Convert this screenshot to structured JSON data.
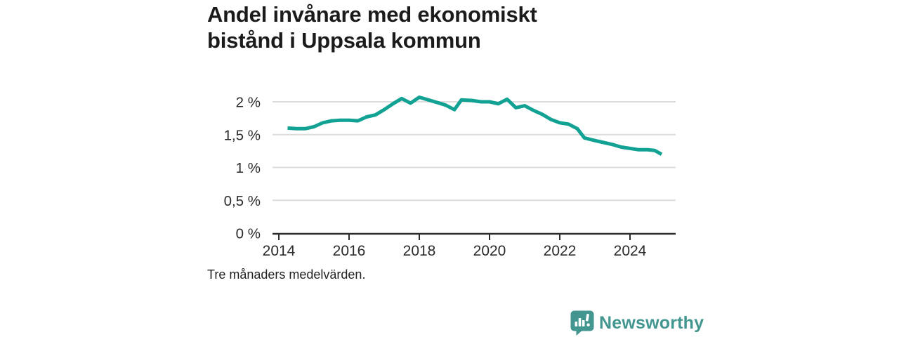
{
  "header": {
    "title": "Andel invånare med ekonomiskt bistånd i Uppsala kommun"
  },
  "footnote": "Tre månaders medelvärden.",
  "branding": {
    "name": "Newsworthy",
    "icon": "bar-chart-speech-bubble-icon"
  },
  "colors": {
    "line": "#12a294",
    "brand": "#42968f",
    "grid": "#dcdcdc",
    "axis": "#2b2b2b",
    "tick_label": "#2b2b2b",
    "title_text": "#1b1b1b",
    "background": "#ffffff"
  },
  "chart_data": {
    "type": "line",
    "title": "Andel invånare med ekonomiskt bistånd i Uppsala kommun",
    "subtitle": "",
    "xlabel": "",
    "ylabel": "",
    "legend": "none",
    "grid": "horizontal",
    "xlim": [
      2013.82,
      2025.3
    ],
    "ylim": [
      0,
      2.15
    ],
    "x_ticks": [
      {
        "value": 2014,
        "label": "2014"
      },
      {
        "value": 2016,
        "label": "2016"
      },
      {
        "value": 2018,
        "label": "2018"
      },
      {
        "value": 2020,
        "label": "2020"
      },
      {
        "value": 2022,
        "label": "2022"
      },
      {
        "value": 2024,
        "label": "2024"
      }
    ],
    "y_ticks": [
      {
        "value": 0,
        "label": "0 %"
      },
      {
        "value": 0.5,
        "label": "0,5 %"
      },
      {
        "value": 1,
        "label": "1 %"
      },
      {
        "value": 1.5,
        "label": "1,5 %"
      },
      {
        "value": 2,
        "label": "2 %"
      }
    ],
    "unit": "percent",
    "series": [
      {
        "name": "Andel invånare med ekonomiskt bistånd, Uppsala kommun",
        "points": [
          [
            2014.25,
            1.6
          ],
          [
            2014.5,
            1.59
          ],
          [
            2014.75,
            1.59
          ],
          [
            2015.0,
            1.62
          ],
          [
            2015.25,
            1.68
          ],
          [
            2015.5,
            1.71
          ],
          [
            2015.75,
            1.72
          ],
          [
            2016.0,
            1.72
          ],
          [
            2016.25,
            1.71
          ],
          [
            2016.5,
            1.77
          ],
          [
            2016.75,
            1.8
          ],
          [
            2017.0,
            1.88
          ],
          [
            2017.25,
            1.97
          ],
          [
            2017.5,
            2.05
          ],
          [
            2017.75,
            1.98
          ],
          [
            2018.0,
            2.07
          ],
          [
            2018.25,
            2.03
          ],
          [
            2018.5,
            1.99
          ],
          [
            2018.75,
            1.95
          ],
          [
            2019.0,
            1.88
          ],
          [
            2019.2,
            2.03
          ],
          [
            2019.5,
            2.02
          ],
          [
            2019.75,
            2.0
          ],
          [
            2020.0,
            2.0
          ],
          [
            2020.25,
            1.97
          ],
          [
            2020.5,
            2.04
          ],
          [
            2020.75,
            1.91
          ],
          [
            2021.0,
            1.94
          ],
          [
            2021.25,
            1.87
          ],
          [
            2021.5,
            1.81
          ],
          [
            2021.75,
            1.73
          ],
          [
            2022.0,
            1.68
          ],
          [
            2022.25,
            1.66
          ],
          [
            2022.5,
            1.59
          ],
          [
            2022.7,
            1.45
          ],
          [
            2023.0,
            1.41
          ],
          [
            2023.25,
            1.38
          ],
          [
            2023.5,
            1.35
          ],
          [
            2023.75,
            1.31
          ],
          [
            2024.0,
            1.29
          ],
          [
            2024.25,
            1.27
          ],
          [
            2024.5,
            1.27
          ],
          [
            2024.7,
            1.26
          ],
          [
            2024.9,
            1.2
          ]
        ]
      }
    ]
  }
}
